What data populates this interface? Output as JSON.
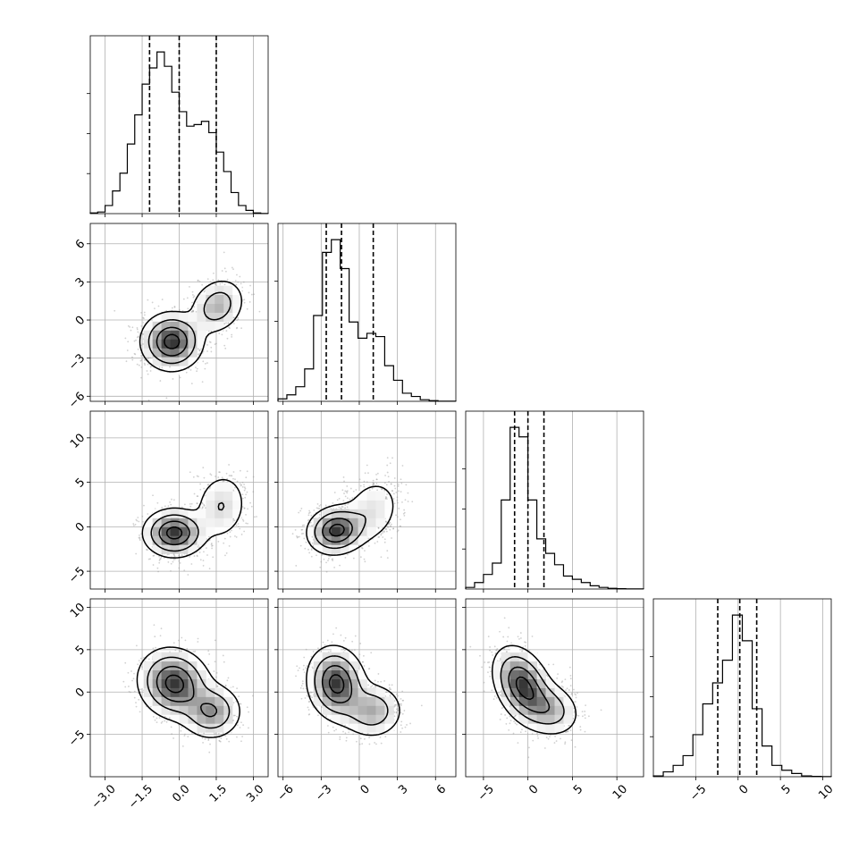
{
  "chart_data": {
    "type": "corner",
    "n_params": 4,
    "grid": true,
    "params": [
      {
        "range": [
          -3.6,
          3.6
        ],
        "ticks": [
          -3.0,
          -1.5,
          0.0,
          1.5,
          3.0
        ],
        "tick_labels": [
          "−3.0",
          "−1.5",
          "0.0",
          "1.5",
          "3.0"
        ],
        "quantiles": [
          -1.2,
          0.0,
          1.5
        ],
        "hist": [
          0.004,
          0.01,
          0.05,
          0.14,
          0.25,
          0.43,
          0.61,
          0.8,
          0.9,
          0.999,
          0.91,
          0.75,
          0.63,
          0.54,
          0.55,
          0.57,
          0.5,
          0.38,
          0.26,
          0.13,
          0.05,
          0.02,
          0.004,
          0.001
        ]
      },
      {
        "range": [
          -6.4,
          7.6
        ],
        "ticks": [
          -6,
          -3,
          0,
          3,
          6
        ],
        "tick_labels": [
          "−6",
          "−3",
          "0",
          "3",
          "6"
        ],
        "quantiles": [
          -2.6,
          -1.4,
          1.1
        ],
        "hist": [
          0.015,
          0.04,
          0.09,
          0.2,
          0.53,
          0.92,
          0.999,
          0.82,
          0.49,
          0.39,
          0.42,
          0.4,
          0.22,
          0.13,
          0.05,
          0.03,
          0.01,
          0.004,
          0.001,
          0.001
        ]
      },
      {
        "range": [
          -7,
          13
        ],
        "ticks": [
          -5,
          0,
          5,
          10
        ],
        "tick_labels": [
          "−5",
          "0",
          "5",
          "10"
        ],
        "quantiles": [
          -1.5,
          0.0,
          1.8
        ],
        "hist": [
          0.01,
          0.04,
          0.09,
          0.16,
          0.55,
          0.999,
          0.94,
          0.55,
          0.31,
          0.22,
          0.15,
          0.08,
          0.06,
          0.04,
          0.02,
          0.01,
          0.004,
          0.002,
          0.001,
          0.001
        ]
      },
      {
        "range": [
          -10,
          11
        ],
        "ticks": [
          -5,
          0,
          5,
          10
        ],
        "tick_labels": [
          "−5",
          "0",
          "5",
          "10"
        ],
        "quantiles": [
          -2.4,
          0.2,
          2.2
        ],
        "hist": [
          0.005,
          0.03,
          0.07,
          0.13,
          0.26,
          0.45,
          0.58,
          0.72,
          0.999,
          0.84,
          0.42,
          0.19,
          0.07,
          0.04,
          0.02,
          0.005,
          0.002,
          0.001
        ]
      }
    ],
    "pairs": [
      {
        "row": 1,
        "col": 0,
        "modes": [
          {
            "cx": -0.3,
            "cy": -1.7,
            "sx": 0.6,
            "sy": 1.1,
            "rho": 0.0,
            "w": 0.7
          },
          {
            "cx": 1.55,
            "cy": 1.1,
            "sx": 0.55,
            "sy": 1.1,
            "rho": 0.2,
            "w": 0.3
          }
        ]
      },
      {
        "row": 2,
        "col": 0,
        "modes": [
          {
            "cx": -0.2,
            "cy": -0.7,
            "sx": 0.6,
            "sy": 1.3,
            "rho": 0.0,
            "w": 0.7
          },
          {
            "cx": 1.7,
            "cy": 2.3,
            "sx": 0.55,
            "sy": 2.0,
            "rho": 0.1,
            "w": 0.3
          }
        ]
      },
      {
        "row": 2,
        "col": 1,
        "modes": [
          {
            "cx": -1.8,
            "cy": -0.4,
            "sx": 1.1,
            "sy": 1.3,
            "rho": 0.1,
            "w": 0.7
          },
          {
            "cx": 1.0,
            "cy": 1.8,
            "sx": 1.2,
            "sy": 2.0,
            "rho": 0.2,
            "w": 0.3
          }
        ]
      },
      {
        "row": 3,
        "col": 0,
        "modes": [
          {
            "cx": -0.2,
            "cy": 1.0,
            "sx": 0.7,
            "sy": 2.0,
            "rho": -0.1,
            "w": 0.7
          },
          {
            "cx": 1.3,
            "cy": -2.3,
            "sx": 0.6,
            "sy": 1.6,
            "rho": 0.0,
            "w": 0.3
          }
        ]
      },
      {
        "row": 3,
        "col": 1,
        "modes": [
          {
            "cx": -1.8,
            "cy": 1.0,
            "sx": 1.1,
            "sy": 2.1,
            "rho": -0.1,
            "w": 0.7
          },
          {
            "cx": 1.0,
            "cy": -2.2,
            "sx": 1.2,
            "sy": 1.6,
            "rho": 0.0,
            "w": 0.3
          }
        ]
      },
      {
        "row": 3,
        "col": 2,
        "modes": [
          {
            "cx": -0.6,
            "cy": 0.8,
            "sx": 1.6,
            "sy": 2.2,
            "rho": -0.35,
            "w": 0.72
          },
          {
            "cx": 2.4,
            "cy": -2.0,
            "sx": 1.7,
            "sy": 1.6,
            "rho": -0.2,
            "w": 0.28
          }
        ]
      }
    ]
  }
}
